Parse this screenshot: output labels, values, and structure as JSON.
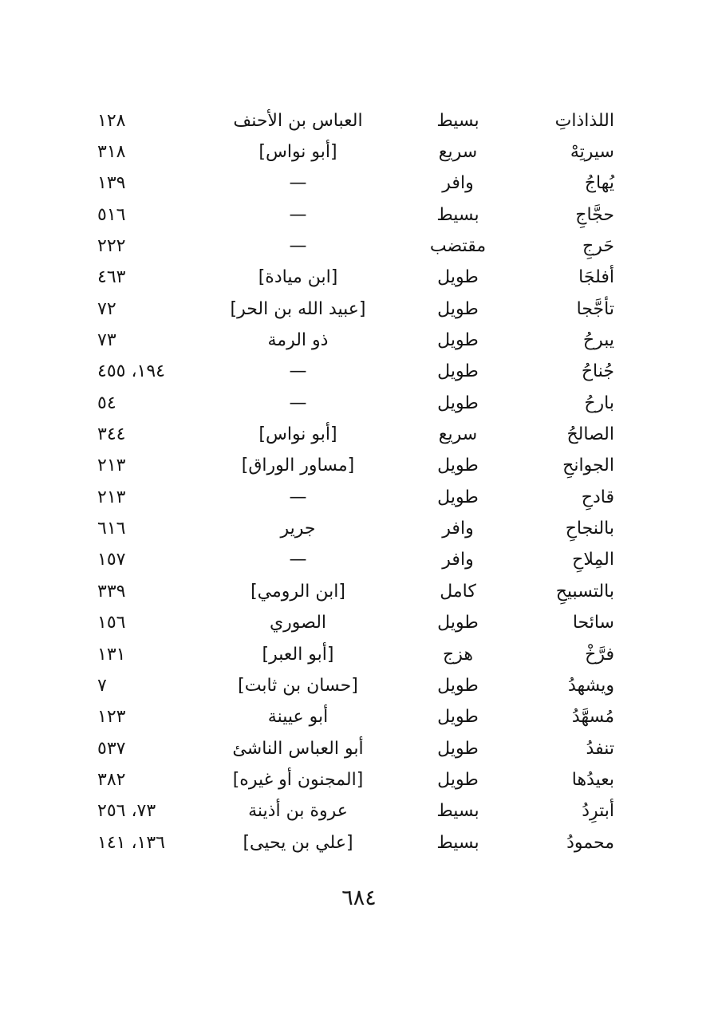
{
  "page": {
    "folio": "٦٨٤"
  },
  "index": {
    "rows": [
      {
        "rhyme": "اللذاذاتِ",
        "meter": "بسيط",
        "poet": "العباس بن الأحنف",
        "pages": "١٢٨"
      },
      {
        "rhyme": "سيرتِهْ",
        "meter": "سريع",
        "poet": "[أبو نواس]",
        "pages": "٣١٨"
      },
      {
        "rhyme": "يُهاجُ",
        "meter": "وافر",
        "poet": "—",
        "pages": "١٣٩"
      },
      {
        "rhyme": "حجَّاجِ",
        "meter": "بسيط",
        "poet": "—",
        "pages": "٥١٦"
      },
      {
        "rhyme": "حَرجِ",
        "meter": "مقتضب",
        "poet": "—",
        "pages": "٢٢٢"
      },
      {
        "rhyme": "أفلجَا",
        "meter": "طويل",
        "poet": "[ابن ميادة]",
        "pages": "٤٦٣"
      },
      {
        "rhyme": "تأجَّجا",
        "meter": "طويل",
        "poet": "[عبيد الله بن الحر]",
        "pages": "٧٢"
      },
      {
        "rhyme": "يبرحُ",
        "meter": "طويل",
        "poet": "ذو الرمة",
        "pages": "٧٣"
      },
      {
        "rhyme": "جُناحُ",
        "meter": "طويل",
        "poet": "—",
        "pages": "١٩٤، ٤٥٥"
      },
      {
        "rhyme": "بارحُ",
        "meter": "طويل",
        "poet": "—",
        "pages": "٥٤"
      },
      {
        "rhyme": "الصالحُ",
        "meter": "سريع",
        "poet": "[أبو نواس]",
        "pages": "٣٤٤"
      },
      {
        "rhyme": "الجوانحِ",
        "meter": "طويل",
        "poet": "[مساور الوراق]",
        "pages": "٢١٣"
      },
      {
        "rhyme": "قادحِ",
        "meter": "طويل",
        "poet": "—",
        "pages": "٢١٣"
      },
      {
        "rhyme": "بالنجاحِ",
        "meter": "وافر",
        "poet": "جرير",
        "pages": "٦١٦"
      },
      {
        "rhyme": "المِلاحِ",
        "meter": "وافر",
        "poet": "—",
        "pages": "١٥٧"
      },
      {
        "rhyme": "بالتسبيحِ",
        "meter": "كامل",
        "poet": "[ابن الرومي]",
        "pages": "٣٣٩"
      },
      {
        "rhyme": "سائحا",
        "meter": "طويل",
        "poet": "الصوري",
        "pages": "١٥٦"
      },
      {
        "rhyme": "فرَّخْ",
        "meter": "هزج",
        "poet": "[أبو العبر]",
        "pages": "١٣١"
      },
      {
        "rhyme": "ويشهدُ",
        "meter": "طويل",
        "poet": "[حسان بن ثابت]",
        "pages": "٧"
      },
      {
        "rhyme": "مُسهَّدُ",
        "meter": "طويل",
        "poet": "أبو عيينة",
        "pages": "١٢٣"
      },
      {
        "rhyme": "تنفدُ",
        "meter": "طويل",
        "poet": "أبو العباس الناشئ",
        "pages": "٥٣٧"
      },
      {
        "rhyme": "بعيدُها",
        "meter": "طويل",
        "poet": "[المجنون أو غيره]",
        "pages": "٣٨٢"
      },
      {
        "rhyme": "أبترِدُ",
        "meter": "بسيط",
        "poet": "عروة بن أذينة",
        "pages": "٧٣، ٢٥٦"
      },
      {
        "rhyme": "محمودُ",
        "meter": "بسيط",
        "poet": "[علي بن يحيى]",
        "pages": "١٣٦، ١٤١"
      }
    ]
  }
}
